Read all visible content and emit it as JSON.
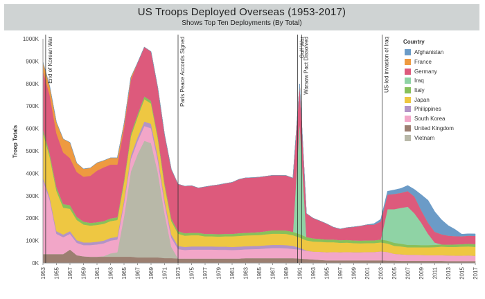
{
  "chart": {
    "title": "US Troops Deployed Overseas (1953-2017)",
    "subtitle": "Shows Top Ten Deployments (By Total)",
    "ylabel": "Troop Totals",
    "legend_title": "Country"
  },
  "chart_data": {
    "type": "area",
    "stacked": true,
    "x": [
      1953,
      1954,
      1955,
      1956,
      1957,
      1958,
      1959,
      1960,
      1961,
      1962,
      1963,
      1964,
      1965,
      1966,
      1967,
      1968,
      1969,
      1970,
      1971,
      1972,
      1973,
      1974,
      1975,
      1976,
      1977,
      1978,
      1979,
      1980,
      1981,
      1982,
      1983,
      1984,
      1985,
      1986,
      1987,
      1988,
      1989,
      1990,
      1991,
      1992,
      1993,
      1994,
      1995,
      1996,
      1997,
      1998,
      1999,
      2000,
      2001,
      2002,
      2003,
      2004,
      2005,
      2006,
      2007,
      2008,
      2009,
      2010,
      2011,
      2012,
      2013,
      2014,
      2015,
      2016,
      2017
    ],
    "x_ticks": [
      1953,
      1955,
      1957,
      1959,
      1961,
      1963,
      1965,
      1967,
      1969,
      1971,
      1973,
      1975,
      1977,
      1979,
      1981,
      1983,
      1985,
      1987,
      1989,
      1991,
      1993,
      1995,
      1997,
      1999,
      2001,
      2003,
      2005,
      2007,
      2009,
      2011,
      2013,
      2015,
      2017
    ],
    "ylim": [
      0,
      1000000
    ],
    "y_ticks": [
      0,
      100000,
      200000,
      300000,
      400000,
      500000,
      600000,
      700000,
      800000,
      900000,
      1000000
    ],
    "y_tick_labels": [
      "0K",
      "100K",
      "200K",
      "300K",
      "400K",
      "500K",
      "600K",
      "700K",
      "800K",
      "900K",
      "1000K"
    ],
    "grid": false,
    "legend_position": "right",
    "series": [
      {
        "name": "United Kingdom",
        "color": "#9c7f71",
        "values": [
          40000,
          40000,
          40000,
          40000,
          60000,
          35000,
          30000,
          28000,
          28000,
          28000,
          28000,
          28000,
          28000,
          28000,
          25000,
          25000,
          25000,
          25000,
          22000,
          22000,
          20000,
          20000,
          20000,
          20000,
          20000,
          20000,
          20000,
          20000,
          20000,
          20000,
          22000,
          22000,
          22000,
          22000,
          22000,
          22000,
          22000,
          22000,
          20000,
          18000,
          16000,
          14000,
          12000,
          12000,
          12000,
          12000,
          12000,
          12000,
          12000,
          12000,
          12000,
          11000,
          11000,
          10000,
          10000,
          10000,
          10000,
          10000,
          10000,
          10000,
          9000,
          9000,
          9000,
          9000,
          9000
        ]
      },
      {
        "name": "Vietnam",
        "color": "#b8b8a8",
        "values": [
          0,
          0,
          0,
          0,
          0,
          0,
          0,
          0,
          0,
          3000,
          15000,
          20000,
          180000,
          380000,
          460000,
          520000,
          510000,
          380000,
          200000,
          50000,
          0,
          0,
          0,
          0,
          0,
          0,
          0,
          0,
          0,
          0,
          0,
          0,
          0,
          0,
          0,
          0,
          0,
          0,
          0,
          0,
          0,
          0,
          0,
          0,
          0,
          0,
          0,
          0,
          0,
          0,
          0,
          0,
          0,
          0,
          0,
          0,
          0,
          0,
          0,
          0,
          0,
          0,
          0,
          0,
          0
        ]
      },
      {
        "name": "South Korea",
        "color": "#f2a6c8",
        "values": [
          330000,
          240000,
          90000,
          75000,
          70000,
          55000,
          50000,
          52000,
          55000,
          57000,
          57000,
          57000,
          58000,
          55000,
          58000,
          66000,
          66000,
          52000,
          45000,
          41000,
          42000,
          38000,
          40000,
          40000,
          40000,
          40000,
          39000,
          39000,
          38000,
          39000,
          39000,
          40000,
          41000,
          43000,
          45000,
          45000,
          44000,
          41000,
          40000,
          36000,
          35000,
          36000,
          36000,
          37000,
          36000,
          37000,
          36000,
          36000,
          37000,
          37000,
          40000,
          38000,
          30000,
          29000,
          27000,
          27000,
          26000,
          25000,
          25000,
          25000,
          25000,
          24000,
          24000,
          25000,
          23000
        ]
      },
      {
        "name": "Philippines",
        "color": "#b394c7",
        "values": [
          12000,
          12000,
          12000,
          12000,
          12000,
          12000,
          12000,
          12000,
          12000,
          12000,
          12000,
          12000,
          14000,
          16000,
          18000,
          20000,
          20000,
          18000,
          15000,
          14000,
          14000,
          14000,
          14000,
          14000,
          14000,
          14000,
          14000,
          14000,
          14000,
          14000,
          14000,
          14000,
          14000,
          14000,
          14000,
          14000,
          14000,
          14000,
          8000,
          2000,
          0,
          0,
          0,
          0,
          0,
          0,
          0,
          0,
          0,
          0,
          0,
          0,
          0,
          0,
          0,
          0,
          0,
          0,
          0,
          0,
          0,
          0,
          0,
          0,
          0
        ]
      },
      {
        "name": "Japan",
        "color": "#eec742",
        "values": [
          200000,
          180000,
          180000,
          120000,
          100000,
          90000,
          80000,
          75000,
          75000,
          75000,
          75000,
          75000,
          80000,
          85000,
          90000,
          100000,
          90000,
          80000,
          65000,
          60000,
          55000,
          50000,
          50000,
          50000,
          45000,
          45000,
          45000,
          46000,
          47000,
          48000,
          48000,
          48000,
          48000,
          49000,
          50000,
          50000,
          50000,
          47000,
          46000,
          45000,
          45000,
          45000,
          45000,
          44000,
          42000,
          42000,
          41000,
          40000,
          40000,
          40000,
          40000,
          38000,
          36000,
          35000,
          33000,
          33000,
          34000,
          35000,
          36000,
          38000,
          38000,
          39000,
          40000,
          40000,
          40000
        ]
      },
      {
        "name": "Italy",
        "color": "#88c05a",
        "values": [
          16000,
          16000,
          16000,
          16000,
          16000,
          14000,
          13000,
          12000,
          12000,
          12000,
          12000,
          12000,
          12000,
          12000,
          12000,
          12000,
          12000,
          11000,
          11000,
          11000,
          11000,
          11000,
          11000,
          11000,
          11000,
          11000,
          11000,
          11000,
          11000,
          12000,
          12000,
          12000,
          13000,
          14000,
          15000,
          15000,
          15000,
          15000,
          15000,
          15000,
          14000,
          13000,
          12000,
          12000,
          12000,
          12000,
          12000,
          12000,
          12000,
          12000,
          13000,
          13000,
          13000,
          12000,
          11000,
          11000,
          10000,
          10000,
          10000,
          10000,
          10000,
          11000,
          11000,
          12000,
          12000
        ]
      },
      {
        "name": "Iraq",
        "color": "#8fd3a5",
        "values": [
          0,
          0,
          0,
          0,
          0,
          0,
          0,
          0,
          0,
          0,
          0,
          0,
          0,
          0,
          0,
          0,
          0,
          0,
          0,
          0,
          0,
          0,
          0,
          0,
          0,
          0,
          0,
          0,
          0,
          0,
          0,
          0,
          0,
          0,
          0,
          0,
          0,
          0,
          500000,
          0,
          0,
          0,
          0,
          0,
          0,
          0,
          0,
          0,
          0,
          0,
          0,
          140000,
          150000,
          160000,
          170000,
          140000,
          100000,
          50000,
          10000,
          0,
          0,
          0,
          0,
          0,
          0
        ]
      },
      {
        "name": "Germany",
        "color": "#dd5a7c",
        "values": [
          260000,
          260000,
          240000,
          230000,
          210000,
          200000,
          200000,
          210000,
          230000,
          240000,
          240000,
          235000,
          230000,
          240000,
          230000,
          220000,
          220000,
          215000,
          215000,
          220000,
          210000,
          210000,
          210000,
          200000,
          210000,
          215000,
          220000,
          225000,
          230000,
          240000,
          245000,
          245000,
          245000,
          245000,
          245000,
          245000,
          245000,
          240000,
          170000,
          105000,
          90000,
          80000,
          70000,
          55000,
          50000,
          55000,
          60000,
          65000,
          70000,
          70000,
          80000,
          65000,
          68000,
          67000,
          70000,
          75000,
          55000,
          50000,
          48000,
          45000,
          40000,
          37000,
          35000,
          36000,
          37000
        ]
      },
      {
        "name": "France",
        "color": "#ee9a40",
        "values": [
          40000,
          40000,
          50000,
          60000,
          70000,
          40000,
          35000,
          35000,
          35000,
          30000,
          30000,
          30000,
          20000,
          12000,
          0,
          0,
          0,
          0,
          0,
          0,
          0,
          0,
          0,
          0,
          0,
          0,
          0,
          0,
          0,
          0,
          0,
          0,
          0,
          0,
          0,
          0,
          0,
          0,
          0,
          0,
          0,
          0,
          0,
          0,
          0,
          0,
          0,
          0,
          0,
          0,
          0,
          0,
          0,
          0,
          0,
          0,
          0,
          0,
          0,
          0,
          0,
          0,
          0,
          0,
          0
        ]
      },
      {
        "name": "Afghanistan",
        "color": "#6b9bc7",
        "values": [
          0,
          0,
          0,
          0,
          0,
          0,
          0,
          0,
          0,
          0,
          0,
          0,
          0,
          0,
          0,
          0,
          0,
          0,
          0,
          0,
          0,
          0,
          0,
          0,
          0,
          0,
          0,
          0,
          0,
          0,
          0,
          0,
          0,
          0,
          0,
          0,
          0,
          0,
          0,
          0,
          0,
          0,
          0,
          0,
          0,
          0,
          0,
          0,
          0,
          5000,
          10000,
          15000,
          18000,
          20000,
          25000,
          32000,
          70000,
          100000,
          90000,
          65000,
          45000,
          30000,
          9800,
          8500,
          9000
        ]
      }
    ],
    "legend_order": [
      "Afghanistan",
      "France",
      "Germany",
      "Iraq",
      "Italy",
      "Japan",
      "Philippines",
      "South Korea",
      "United Kingdom",
      "Vietnam"
    ],
    "annotations": [
      {
        "year": 1953.4,
        "text": "End of Korean War"
      },
      {
        "year": 1973,
        "text": "Paris Peace Accords Signed"
      },
      {
        "year": 1990.7,
        "text": "Gulf War"
      },
      {
        "year": 1991.3,
        "text": "Warsaw Pact Dissolved"
      },
      {
        "year": 2003.2,
        "text": "US-led invasion of Iraq"
      }
    ]
  }
}
